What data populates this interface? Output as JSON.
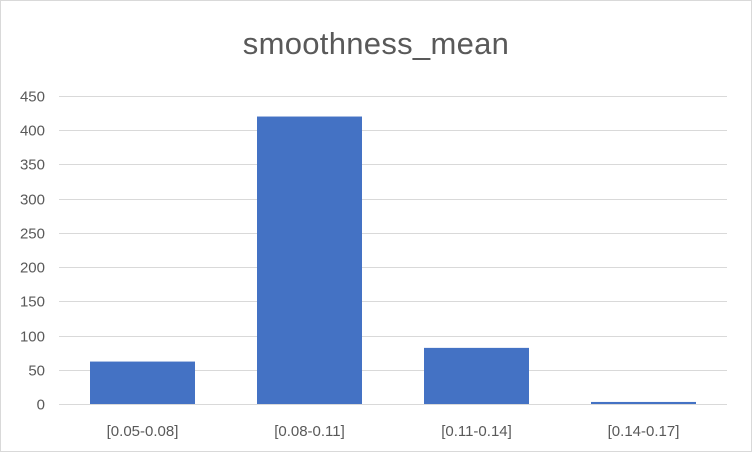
{
  "chart_data": {
    "type": "bar",
    "title": "smoothness_mean",
    "categories": [
      "[0.05-0.08]",
      "[0.08-0.11]",
      "[0.11-0.14]",
      "[0.14-0.17]"
    ],
    "values": [
      62,
      420,
      82,
      3
    ],
    "xlabel": "",
    "ylabel": "",
    "ylim": [
      0,
      450
    ],
    "yticks": [
      0,
      50,
      100,
      150,
      200,
      250,
      300,
      350,
      400,
      450
    ],
    "grid": true,
    "legend": "none",
    "bar_color": "#4472C4",
    "gridline_color": "#d9d9d9"
  }
}
